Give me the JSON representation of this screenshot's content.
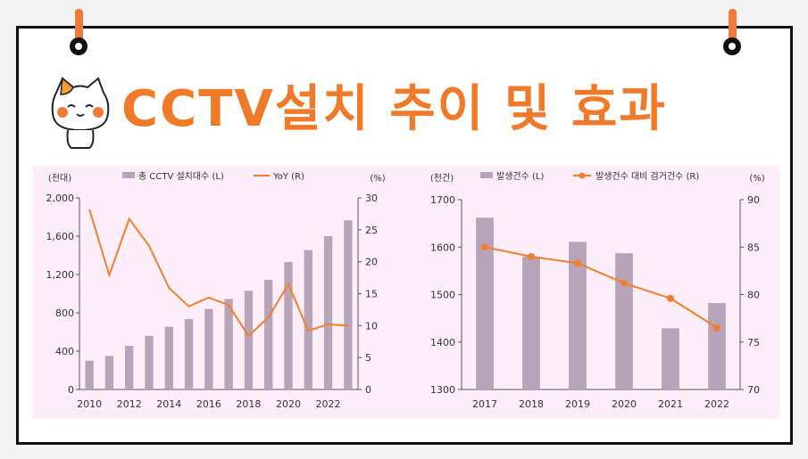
{
  "title": "CCTV설치 추이 및 효과",
  "colors": {
    "accent": "#f07a2a",
    "bar": "#b8a4b8",
    "line": "#ee8030",
    "panel": "#fdeefa"
  },
  "mascot_icon": "cat-mascot-icon",
  "chart_data": [
    {
      "type": "bar",
      "title": "",
      "unit_left": "(천대)",
      "unit_right": "(%)",
      "legend": [
        "총 CCTV 설치대수 (L)",
        "YoY (R)"
      ],
      "x_tick_labels": [
        "2010",
        "2012",
        "2014",
        "2016",
        "2018",
        "2020",
        "2022"
      ],
      "x": [
        2010,
        2011,
        2012,
        2013,
        2014,
        2015,
        2016,
        2017,
        2018,
        2019,
        2020,
        2021,
        2022,
        2023
      ],
      "ylim_left": [
        0,
        2000
      ],
      "yticks_left": [
        "0",
        "400",
        "800",
        "1,200",
        "1,600",
        "2,000"
      ],
      "ylim_right": [
        0,
        30
      ],
      "yticks_right": [
        "0",
        "5",
        "10",
        "15",
        "20",
        "25",
        "30"
      ],
      "series": [
        {
          "name": "총 CCTV 설치대수 (L)",
          "type": "bar",
          "axis": "left",
          "values": [
            300,
            350,
            455,
            560,
            655,
            735,
            840,
            945,
            1030,
            1145,
            1330,
            1455,
            1600,
            1765
          ]
        },
        {
          "name": "YoY (R)",
          "type": "line",
          "axis": "right",
          "values": [
            28.2,
            17.9,
            26.7,
            22.5,
            15.9,
            13.0,
            14.4,
            13.2,
            8.4,
            11.3,
            16.5,
            9.2,
            10.2,
            10.0
          ]
        }
      ],
      "grid": false,
      "legend_position": "top-center"
    },
    {
      "type": "bar",
      "title": "",
      "unit_left": "(천건)",
      "unit_right": "(%)",
      "legend": [
        "발생건수 (L)",
        "발생건수 대비 검거건수 (R)"
      ],
      "x": [
        "2017",
        "2018",
        "2019",
        "2020",
        "2021",
        "2022"
      ],
      "ylim_left": [
        1300,
        1700
      ],
      "yticks_left": [
        "1300",
        "1400",
        "1500",
        "1600",
        "1700"
      ],
      "ylim_right": [
        70,
        90
      ],
      "yticks_right": [
        "70",
        "75",
        "80",
        "85",
        "90"
      ],
      "series": [
        {
          "name": "발생건수 (L)",
          "type": "bar",
          "axis": "left",
          "values": [
            1662,
            1580,
            1611,
            1587,
            1429,
            1482
          ]
        },
        {
          "name": "발생건수 대비 검거건수 (R)",
          "type": "line",
          "axis": "right",
          "values": [
            85.0,
            84.0,
            83.3,
            81.2,
            79.6,
            76.5
          ]
        }
      ],
      "grid": false,
      "legend_position": "top-center"
    }
  ]
}
